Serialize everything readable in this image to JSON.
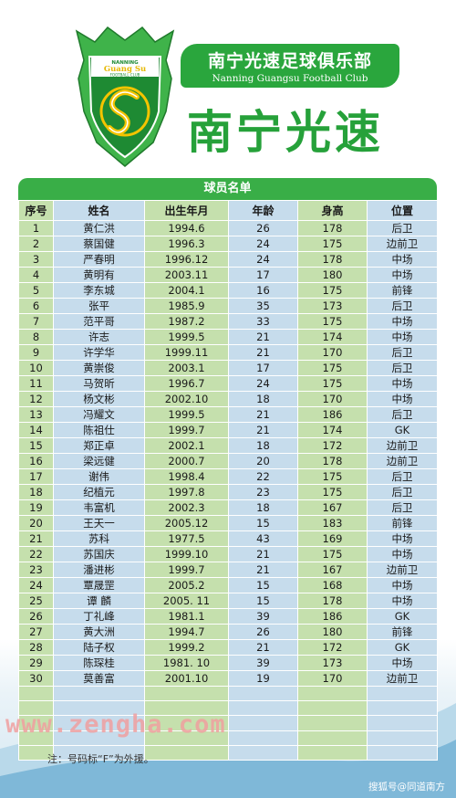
{
  "header": {
    "logo_text_top": "NANNING",
    "logo_text_mid": "Guang Su",
    "logo_text_bottom": "FOOTBALL CLUB",
    "club_name_cn": "南宁光速足球俱乐部",
    "club_name_en": "Nanning Guangsu Football Club",
    "big_title": "南宁光速"
  },
  "roster": {
    "banner": "球员名单",
    "columns": [
      "序号",
      "姓名",
      "出生年月",
      "年龄",
      "身高",
      "位置"
    ],
    "rows": [
      [
        "1",
        "黄仁洪",
        "1994.6",
        "26",
        "178",
        "后卫"
      ],
      [
        "2",
        "蔡国健",
        "1996.3",
        "24",
        "175",
        "边前卫"
      ],
      [
        "3",
        "严春明",
        "1996.12",
        "24",
        "178",
        "中场"
      ],
      [
        "4",
        "黄明有",
        "2003.11",
        "17",
        "180",
        "中场"
      ],
      [
        "5",
        "李东城",
        "2004.1",
        "16",
        "175",
        "前锋"
      ],
      [
        "6",
        "张平",
        "1985.9",
        "35",
        "173",
        "后卫"
      ],
      [
        "7",
        "范平哥",
        "1987.2",
        "33",
        "175",
        "中场"
      ],
      [
        "8",
        "许志",
        "1999.5",
        "21",
        "174",
        "中场"
      ],
      [
        "9",
        "许学华",
        "1999.11",
        "21",
        "170",
        "后卫"
      ],
      [
        "10",
        "黄崇俊",
        "2003.1",
        "17",
        "175",
        "后卫"
      ],
      [
        "11",
        "马贺昕",
        "1996.7",
        "24",
        "175",
        "中场"
      ],
      [
        "12",
        "杨文彬",
        "2002.10",
        "18",
        "170",
        "中场"
      ],
      [
        "13",
        "冯耀文",
        "1999.5",
        "21",
        "186",
        "后卫"
      ],
      [
        "14",
        "陈祖仕",
        "1999.7",
        "21",
        "174",
        "GK"
      ],
      [
        "15",
        "郑正卓",
        "2002.1",
        "18",
        "172",
        "边前卫"
      ],
      [
        "16",
        "梁远健",
        "2000.7",
        "20",
        "178",
        "边前卫"
      ],
      [
        "17",
        "谢伟",
        "1998.4",
        "22",
        "175",
        "后卫"
      ],
      [
        "18",
        "纪植元",
        "1997.8",
        "23",
        "175",
        "后卫"
      ],
      [
        "19",
        "韦富机",
        "2002.3",
        "18",
        "167",
        "后卫"
      ],
      [
        "20",
        "王天一",
        "2005.12",
        "15",
        "183",
        "前锋"
      ],
      [
        "21",
        "苏科",
        "1977.5",
        "43",
        "169",
        "中场"
      ],
      [
        "22",
        "苏国庆",
        "1999.10",
        "21",
        "175",
        "中场"
      ],
      [
        "23",
        "潘进彬",
        "1999.7",
        "21",
        "167",
        "边前卫"
      ],
      [
        "24",
        "覃晟罡",
        "2005.2",
        "15",
        "168",
        "中场"
      ],
      [
        "25",
        "谭  麟",
        "2005.  11",
        "15",
        "178",
        "中场"
      ],
      [
        "26",
        "丁礼峰",
        "1981.1",
        "39",
        "186",
        "GK"
      ],
      [
        "27",
        "黄大洲",
        "1994.7",
        "26",
        "180",
        "前锋"
      ],
      [
        "28",
        "陆子权",
        "1999.2",
        "21",
        "172",
        "GK"
      ],
      [
        "29",
        "陈琛桂",
        "1981.  10",
        "39",
        "173",
        "中场"
      ],
      [
        "30",
        "莫善富",
        "2001.10",
        "19",
        "170",
        "边前卫"
      ]
    ],
    "blank_rows": 5
  },
  "footer": {
    "watermark": "www.zengha.com",
    "note": "注：号码标“F”为外援。",
    "credit": "搜狐号@同道南方"
  },
  "colors": {
    "brand_green": "#2aa63d",
    "row_green": "#c5e0ad",
    "row_blue": "#c6dcec"
  }
}
